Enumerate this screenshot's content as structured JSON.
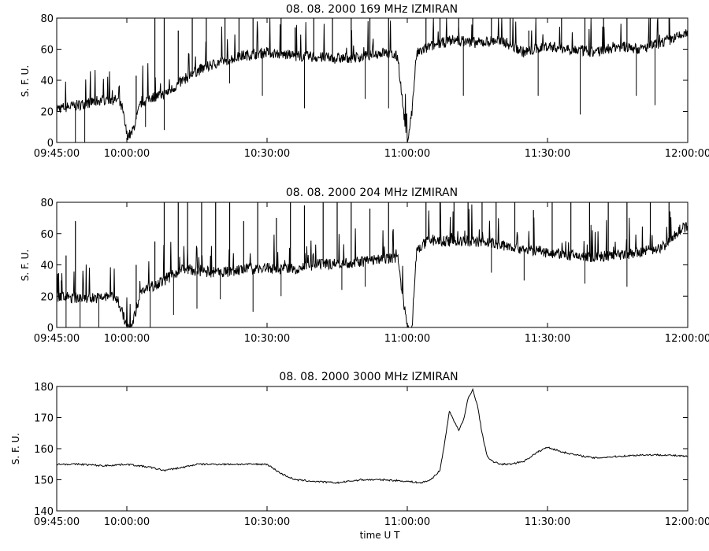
{
  "chart_data": [
    {
      "type": "line",
      "title": "08.  08.  2000    169  MHz    IZMIRAN",
      "xlabel": "",
      "ylabel": "S. F. U.",
      "xlim": [
        "09:45:00",
        "12:00:00"
      ],
      "ylim": [
        0,
        80
      ],
      "x_ticks": [
        "09:45:00",
        "10:00:00",
        "10:30:00",
        "11:00:00",
        "11:30:00",
        "12:00:00"
      ],
      "y_ticks": [
        0,
        20,
        40,
        60,
        80
      ],
      "grid": false,
      "series": [
        {
          "x": [
            "09:45:00",
            "09:48:00",
            "09:51:00",
            "09:54:00",
            "09:56:00",
            "09:58:00",
            "09:59:00",
            "10:00:00",
            "10:01:00",
            "10:03:00",
            "10:05:00",
            "10:08:00",
            "10:10:00",
            "10:12:00",
            "10:15:00",
            "10:20:00",
            "10:25:00",
            "10:30:00",
            "10:35:00",
            "10:40:00",
            "10:45:00",
            "10:50:00",
            "10:55:00",
            "10:58:00",
            "10:59:00",
            "11:00:00",
            "11:01:00",
            "11:02:00",
            "11:05:00",
            "11:10:00",
            "11:15:00",
            "11:20:00",
            "11:25:00",
            "11:30:00",
            "11:35:00",
            "11:40:00",
            "11:45:00",
            "11:50:00",
            "11:55:00",
            "12:00:00"
          ],
          "y": [
            22,
            23,
            25,
            27,
            28,
            27,
            22,
            5,
            5,
            25,
            29,
            31,
            35,
            40,
            46,
            52,
            56,
            58,
            56,
            55,
            54,
            55,
            58,
            55,
            25,
            0,
            20,
            57,
            62,
            66,
            64,
            66,
            58,
            62,
            60,
            58,
            62,
            60,
            65,
            70
          ],
          "bursts": [
            [
              "10:02:00",
              43
            ],
            [
              "10:06:00",
              80
            ],
            [
              "10:08:00",
              80
            ],
            [
              "10:11:00",
              72
            ],
            [
              "10:14:00",
              80
            ],
            [
              "10:17:00",
              80
            ],
            [
              "10:21:00",
              80
            ],
            [
              "10:24:00",
              80
            ],
            [
              "10:27:00",
              80
            ],
            [
              "10:33:00",
              80
            ],
            [
              "10:36:00",
              74
            ],
            [
              "10:40:00",
              80
            ],
            [
              "10:44:00",
              80
            ],
            [
              "10:48:00",
              80
            ],
            [
              "10:52:00",
              80
            ],
            [
              "10:56:00",
              80
            ],
            [
              "11:04:00",
              80
            ],
            [
              "11:07:00",
              80
            ],
            [
              "11:11:00",
              80
            ],
            [
              "11:14:00",
              80
            ],
            [
              "11:18:00",
              80
            ],
            [
              "11:22:00",
              80
            ],
            [
              "11:26:00",
              72
            ],
            [
              "11:33:00",
              80
            ],
            [
              "11:38:00",
              80
            ],
            [
              "11:42:00",
              80
            ],
            [
              "11:47:00",
              80
            ],
            [
              "11:52:00",
              80
            ],
            [
              "11:56:00",
              80
            ]
          ],
          "dips": [
            [
              "09:49:00",
              0
            ],
            [
              "09:51:00",
              0
            ],
            [
              "10:04:00",
              10
            ],
            [
              "10:08:00",
              8
            ],
            [
              "10:22:00",
              38
            ],
            [
              "10:29:00",
              30
            ],
            [
              "10:38:00",
              22
            ],
            [
              "10:51:00",
              28
            ],
            [
              "10:56:00",
              22
            ],
            [
              "11:12:00",
              30
            ],
            [
              "11:28:00",
              30
            ],
            [
              "11:37:00",
              18
            ],
            [
              "11:49:00",
              30
            ],
            [
              "11:53:00",
              24
            ]
          ]
        }
      ]
    },
    {
      "type": "line",
      "title": "08.  08.  2000    204  MHz    IZMIRAN",
      "xlabel": "",
      "ylabel": "S. F. U.",
      "xlim": [
        "09:45:00",
        "12:00:00"
      ],
      "ylim": [
        0,
        80
      ],
      "x_ticks": [
        "09:45:00",
        "10:00:00",
        "10:30:00",
        "11:00:00",
        "11:30:00",
        "12:00:00"
      ],
      "y_ticks": [
        0,
        20,
        40,
        60,
        80
      ],
      "grid": false,
      "series": [
        {
          "x": [
            "09:45:00",
            "09:48:00",
            "09:51:00",
            "09:54:00",
            "09:57:00",
            "09:58:00",
            "09:59:00",
            "10:00:00",
            "10:01:00",
            "10:03:00",
            "10:05:00",
            "10:08:00",
            "10:10:00",
            "10:12:00",
            "10:15:00",
            "10:20:00",
            "10:25:00",
            "10:30:00",
            "10:35:00",
            "10:40:00",
            "10:45:00",
            "10:50:00",
            "10:55:00",
            "10:58:00",
            "10:59:00",
            "11:00:00",
            "11:01:00",
            "11:02:00",
            "11:05:00",
            "11:10:00",
            "11:15:00",
            "11:20:00",
            "11:25:00",
            "11:30:00",
            "11:35:00",
            "11:40:00",
            "11:45:00",
            "11:50:00",
            "11:55:00",
            "11:58:00",
            "12:00:00"
          ],
          "y": [
            20,
            19,
            19,
            19,
            20,
            18,
            10,
            0,
            0,
            23,
            26,
            30,
            34,
            38,
            36,
            35,
            37,
            38,
            37,
            40,
            41,
            42,
            44,
            45,
            20,
            0,
            0,
            50,
            56,
            55,
            55,
            53,
            50,
            48,
            46,
            45,
            46,
            48,
            52,
            62,
            65
          ],
          "bursts": [
            [
              "09:46:00",
              30
            ],
            [
              "09:47:00",
              46
            ],
            [
              "09:49:00",
              68
            ],
            [
              "10:02:00",
              40
            ],
            [
              "10:06:00",
              55
            ],
            [
              "10:08:00",
              80
            ],
            [
              "10:11:00",
              80
            ],
            [
              "10:13:00",
              80
            ],
            [
              "10:16:00",
              80
            ],
            [
              "10:19:00",
              80
            ],
            [
              "10:22:00",
              80
            ],
            [
              "10:25:00",
              68
            ],
            [
              "10:28:00",
              80
            ],
            [
              "10:32:00",
              70
            ],
            [
              "10:35:00",
              80
            ],
            [
              "10:38:00",
              78
            ],
            [
              "10:42:00",
              80
            ],
            [
              "10:45:00",
              80
            ],
            [
              "10:48:00",
              80
            ],
            [
              "10:52:00",
              76
            ],
            [
              "10:56:00",
              80
            ],
            [
              "11:04:00",
              80
            ],
            [
              "11:07:00",
              80
            ],
            [
              "11:10:00",
              80
            ],
            [
              "11:13:00",
              80
            ],
            [
              "11:16:00",
              80
            ],
            [
              "11:19:00",
              80
            ],
            [
              "11:23:00",
              80
            ],
            [
              "11:27:00",
              75
            ],
            [
              "11:31:00",
              80
            ],
            [
              "11:35:00",
              80
            ],
            [
              "11:39:00",
              80
            ],
            [
              "11:43:00",
              80
            ],
            [
              "11:47:00",
              80
            ],
            [
              "11:52:00",
              80
            ],
            [
              "11:56:00",
              80
            ]
          ],
          "dips": [
            [
              "09:47:00",
              0
            ],
            [
              "09:50:00",
              0
            ],
            [
              "09:54:00",
              0
            ],
            [
              "10:05:00",
              0
            ],
            [
              "10:10:00",
              8
            ],
            [
              "10:15:00",
              12
            ],
            [
              "10:20:00",
              18
            ],
            [
              "10:27:00",
              10
            ],
            [
              "10:33:00",
              20
            ],
            [
              "10:46:00",
              24
            ],
            [
              "10:51:00",
              26
            ],
            [
              "11:18:00",
              35
            ],
            [
              "11:25:00",
              30
            ],
            [
              "11:38:00",
              28
            ],
            [
              "11:47:00",
              26
            ]
          ]
        }
      ]
    },
    {
      "type": "line",
      "title": "08.  08.  2000    3000  MHz    IZMIRAN",
      "xlabel": "time   U T",
      "ylabel": "S. F. U.",
      "xlim": [
        "09:45:00",
        "12:00:00"
      ],
      "ylim": [
        140,
        180
      ],
      "x_ticks": [
        "09:45:00",
        "10:00:00",
        "10:30:00",
        "11:00:00",
        "11:30:00",
        "12:00:00"
      ],
      "y_ticks": [
        140,
        150,
        160,
        170,
        180
      ],
      "grid": false,
      "series": [
        {
          "x": [
            "09:45:00",
            "09:50:00",
            "09:55:00",
            "10:00:00",
            "10:05:00",
            "10:08:00",
            "10:12:00",
            "10:15:00",
            "10:20:00",
            "10:25:00",
            "10:30:00",
            "10:33:00",
            "10:36:00",
            "10:40:00",
            "10:45:00",
            "10:50:00",
            "10:55:00",
            "11:00:00",
            "11:03:00",
            "11:05:00",
            "11:07:00",
            "11:08:00",
            "11:09:00",
            "11:10:00",
            "11:11:00",
            "11:12:00",
            "11:13:00",
            "11:14:00",
            "11:15:00",
            "11:16:00",
            "11:17:00",
            "11:18:00",
            "11:20:00",
            "11:22:00",
            "11:25:00",
            "11:28:00",
            "11:30:00",
            "11:33:00",
            "11:36:00",
            "11:40:00",
            "11:45:00",
            "11:50:00",
            "11:55:00",
            "12:00:00"
          ],
          "y": [
            155,
            155,
            154.5,
            155,
            154,
            153,
            154,
            155,
            155,
            155,
            155,
            152,
            150,
            149.5,
            149,
            150,
            150,
            149.5,
            149,
            150,
            153,
            162,
            172,
            169,
            166,
            169,
            176,
            179,
            174,
            165,
            158,
            156,
            155,
            155,
            156,
            159,
            160.5,
            159,
            158,
            157,
            157.5,
            158,
            158,
            157.5
          ]
        }
      ]
    }
  ]
}
